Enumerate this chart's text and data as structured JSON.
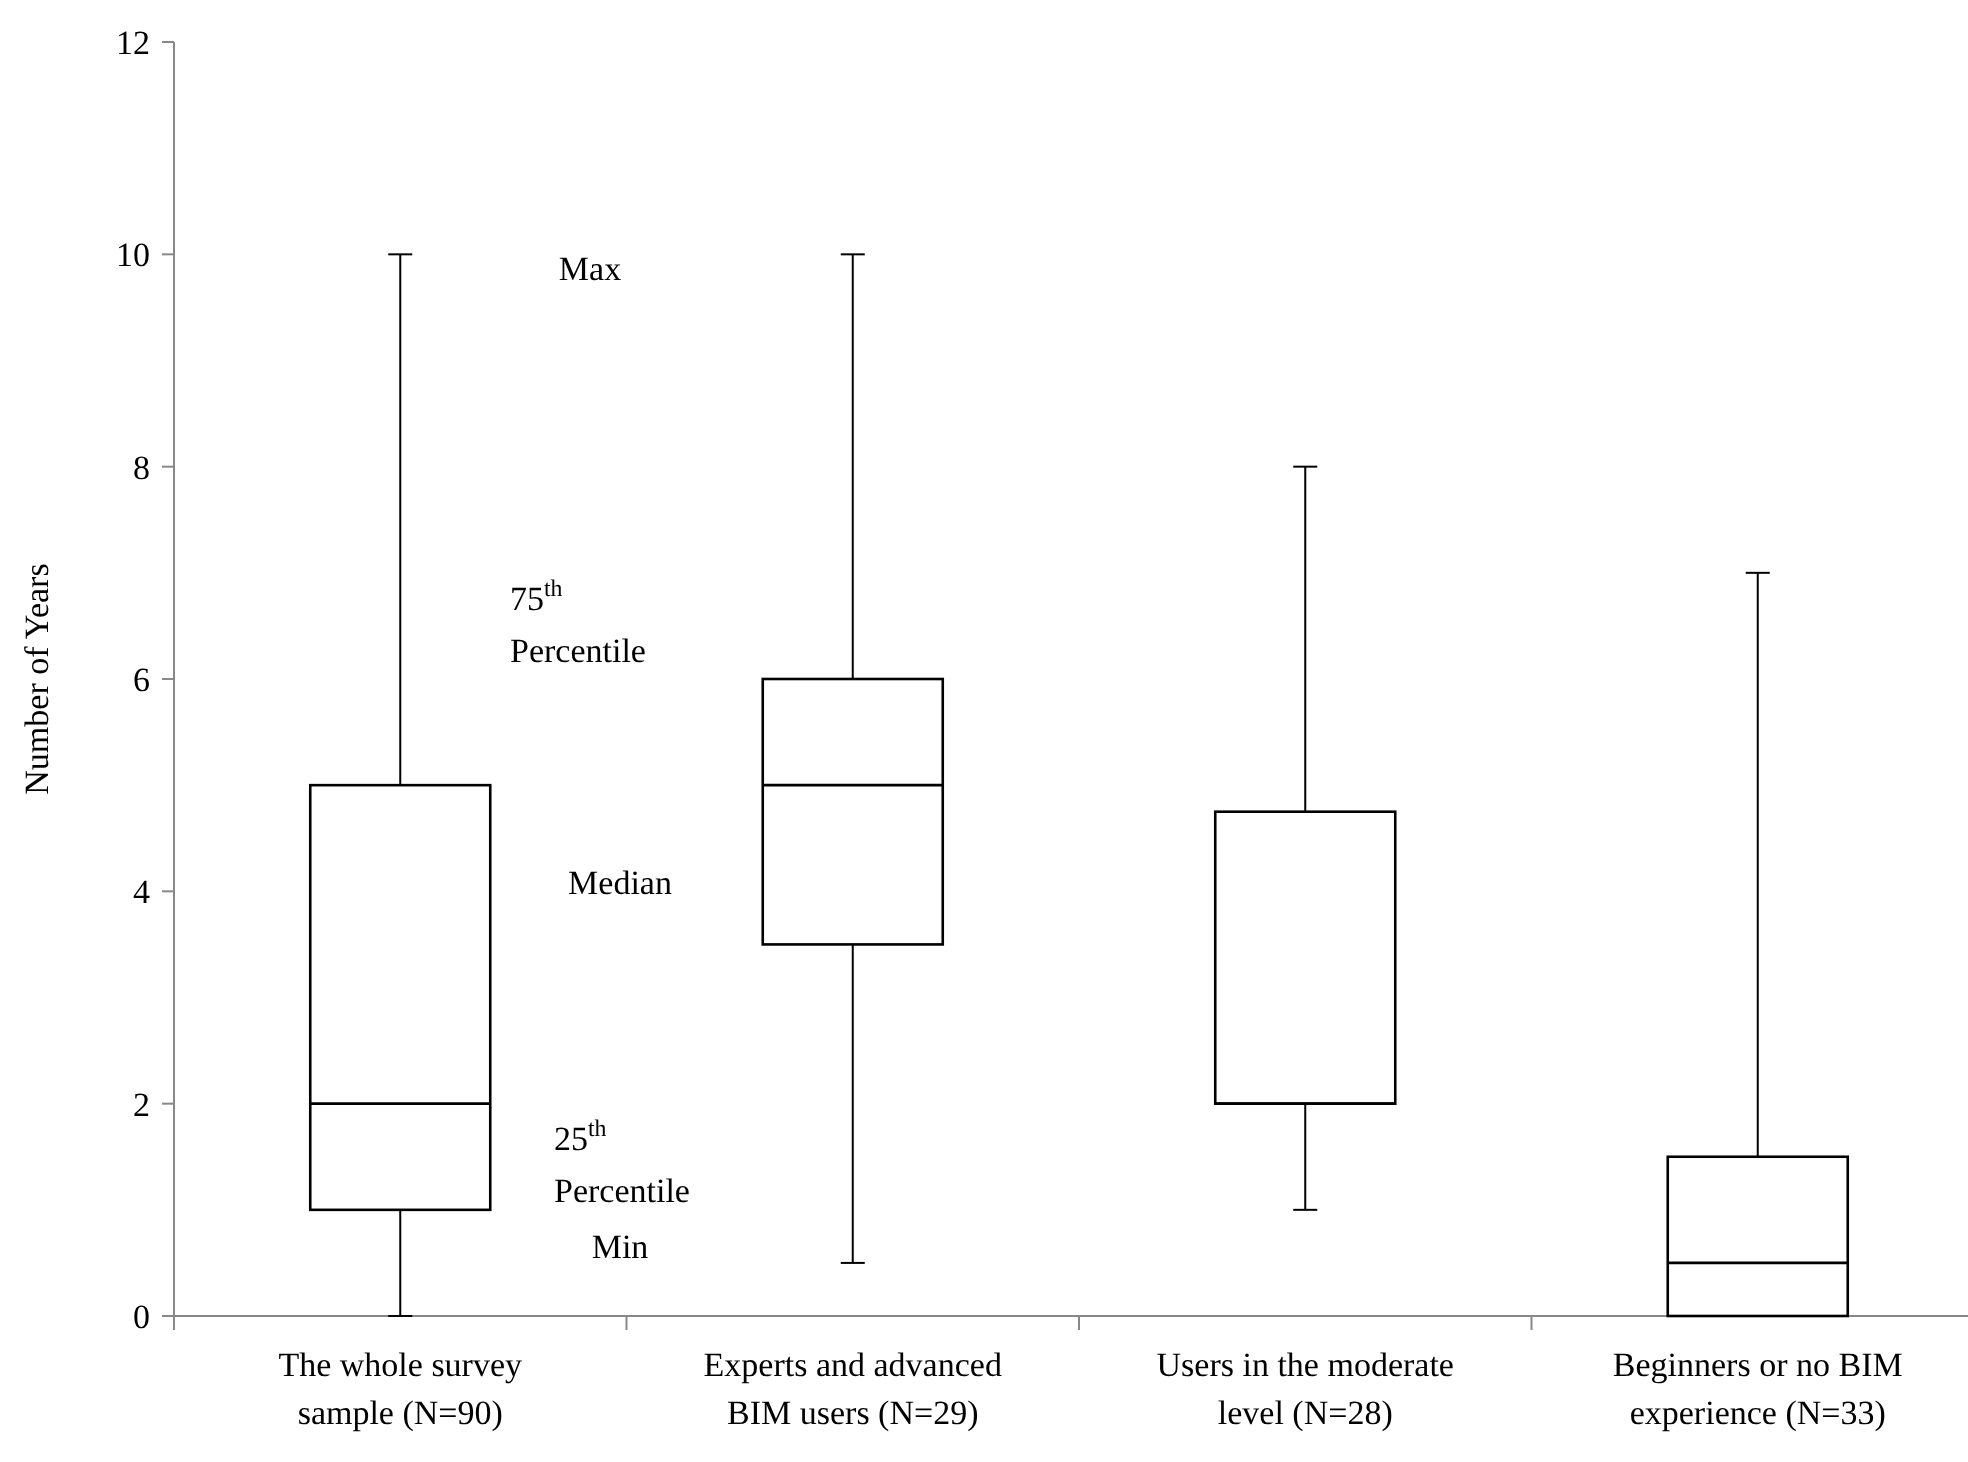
{
  "chart_data": {
    "type": "box",
    "ylabel": "Number of Years",
    "categories": [
      "The whole survey sample (N=90)",
      "Experts and advanced BIM users (N=29)",
      "Users in the moderate level (N=28)",
      "Beginners or no BIM experience (N=33)"
    ],
    "boxes": [
      {
        "low": 0,
        "q1": 1,
        "median": 2,
        "q3": 5,
        "high": 10
      },
      {
        "low": 0.5,
        "q1": 3.5,
        "median": 5,
        "q3": 6,
        "high": 10
      },
      {
        "low": 1,
        "q1": 2,
        "median": 2,
        "q3": 4.75,
        "high": 8
      },
      {
        "low": 0,
        "q1": 0,
        "median": 0.5,
        "q3": 1.5,
        "high": 7
      }
    ],
    "ylim": [
      0,
      12
    ],
    "yticks": [
      0,
      2,
      4,
      6,
      8,
      10,
      12
    ],
    "grid": false,
    "annotations": [
      "Max",
      "75$^{th}$ Percentile",
      "Median",
      "25$^{th}$ Percentile",
      "Min"
    ]
  }
}
